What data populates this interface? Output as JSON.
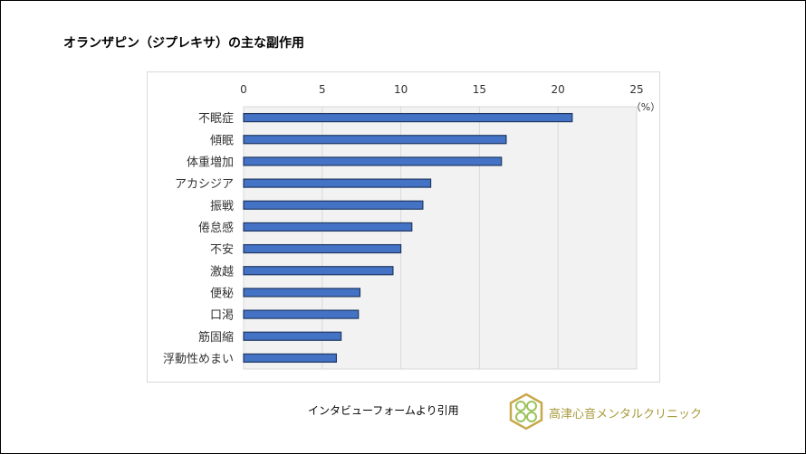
{
  "title": "オランザピン（ジプレキサ）の主な副作用",
  "source_note": "インタビューフォームより引用",
  "clinic_name": "高津心音メンタルクリニック",
  "colors": {
    "bar": "#4472c4",
    "bar_border": "#1f3864",
    "plot_bg": "#f2f2f2",
    "grid": "#d9d9d9",
    "logo": "#c8a84b"
  },
  "chart_data": {
    "type": "bar",
    "orientation": "horizontal",
    "title": "オランザピン（ジプレキサ）の主な副作用",
    "unit_label": "（%）",
    "categories": [
      "不眠症",
      "傾眠",
      "体重増加",
      "アカシジア",
      "振戦",
      "倦怠感",
      "不安",
      "激越",
      "便秘",
      "口渇",
      "筋固縮",
      "浮動性めまい"
    ],
    "values": [
      20.9,
      16.7,
      16.4,
      11.9,
      11.4,
      10.7,
      10.0,
      9.5,
      7.4,
      7.3,
      6.2,
      5.9
    ],
    "xlim": [
      0,
      25
    ],
    "xticks": [
      "0",
      "5",
      "10",
      "15",
      "20",
      "25"
    ],
    "x_axis_position": "top",
    "grid": true,
    "legend": "none"
  }
}
